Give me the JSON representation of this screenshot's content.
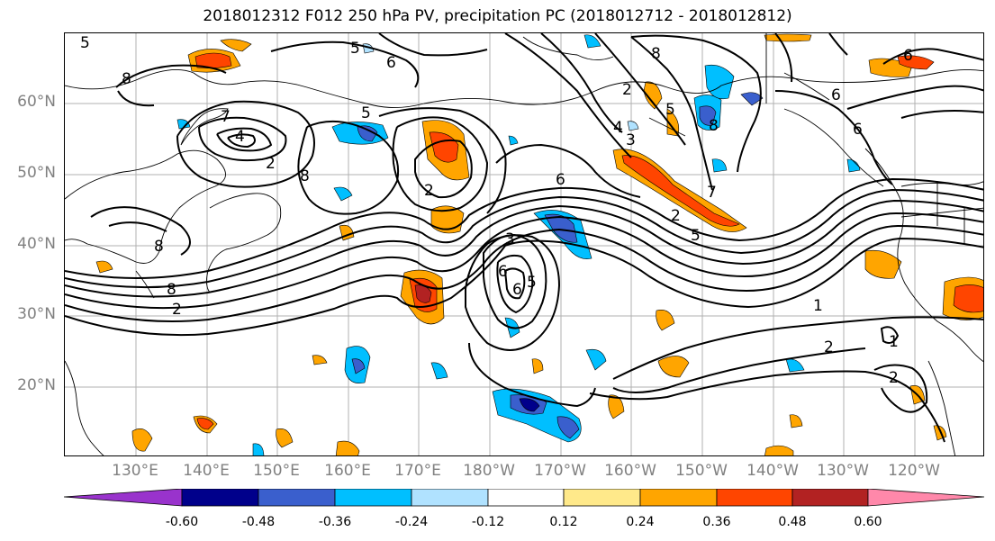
{
  "title": "2018012312 F012 250 hPa PV, precipitation PC (2018012712 - 2018012812)",
  "lat_labels": [
    "60°N",
    "50°N",
    "40°N",
    "30°N",
    "20°N"
  ],
  "lon_labels": [
    "130°E",
    "140°E",
    "150°E",
    "160°E",
    "170°E",
    "180°W",
    "170°W",
    "160°W",
    "150°W",
    "140°W",
    "130°W",
    "120°W"
  ],
  "contour_labels": [
    "5",
    "6",
    "8",
    "5",
    "4",
    "7",
    "2",
    "8",
    "5",
    "2",
    "3",
    "6",
    "5",
    "8",
    "6",
    "8",
    "6",
    "2",
    "3",
    "2",
    "6",
    "5",
    "4",
    "8",
    "6",
    "5",
    "7",
    "6",
    "8",
    "2",
    "1",
    "2",
    "1",
    "2"
  ],
  "colorbar": {
    "tick_labels": [
      "-0.60",
      "-0.48",
      "-0.36",
      "-0.24",
      "-0.12",
      "0.12",
      "0.24",
      "0.36",
      "0.48",
      "0.60"
    ],
    "colors": [
      "#9933cc",
      "#00008b",
      "#3a5fcd",
      "#00bfff",
      "#b0e2ff",
      "#ffffff",
      "#ffe98a",
      "#ffa500",
      "#ff4500",
      "#b22222",
      "#ff88aa"
    ]
  }
}
